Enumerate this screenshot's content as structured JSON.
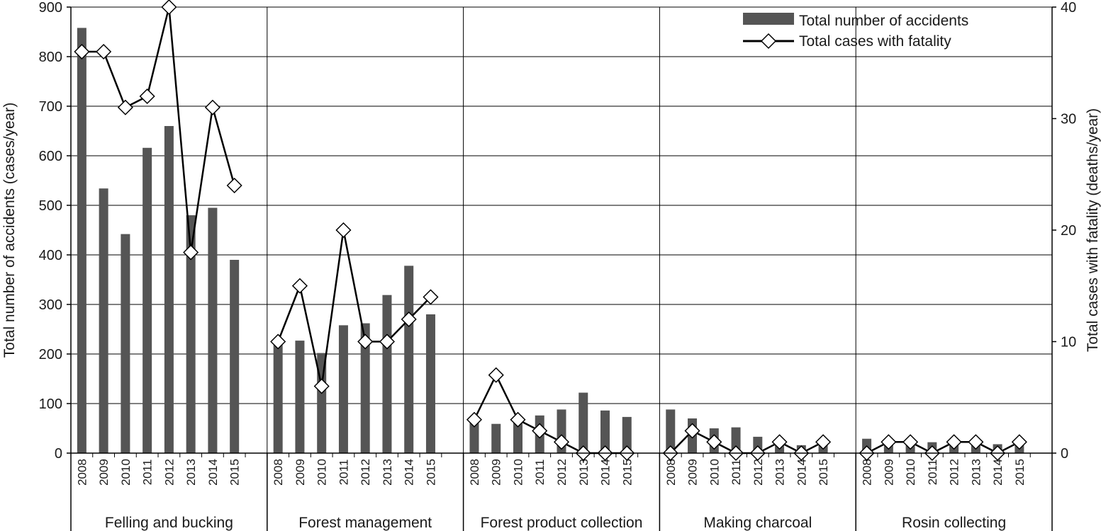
{
  "chart_data": {
    "type": "bar",
    "groups": [
      "Felling and bucking",
      "Forest management",
      "Forest product collection",
      "Making charcoal",
      "Rosin collecting"
    ],
    "years": [
      "2008",
      "2009",
      "2010",
      "2011",
      "2012",
      "2013",
      "2014",
      "2015"
    ],
    "series": [
      {
        "name": "Total number of accidents",
        "type": "bar",
        "axis": "left",
        "color": "#555555",
        "values": [
          [
            858,
            534,
            442,
            616,
            660,
            480,
            495,
            390
          ],
          [
            225,
            227,
            202,
            258,
            262,
            319,
            378,
            280
          ],
          [
            68,
            59,
            70,
            76,
            88,
            122,
            86,
            73
          ],
          [
            88,
            70,
            50,
            52,
            33,
            22,
            16,
            23
          ],
          [
            29,
            27,
            24,
            22,
            20,
            18,
            18,
            16
          ]
        ]
      },
      {
        "name": "Total cases with fatality",
        "type": "line",
        "axis": "right",
        "color": "#000000",
        "marker": "diamond",
        "values": [
          [
            36,
            36,
            31,
            32,
            40,
            18,
            31,
            24
          ],
          [
            10,
            15,
            6,
            20,
            10,
            10,
            12,
            14
          ],
          [
            3,
            7,
            3,
            2,
            1,
            0,
            0,
            0
          ],
          [
            0,
            2,
            1,
            0,
            0,
            1,
            0,
            1
          ],
          [
            0,
            1,
            1,
            0,
            1,
            1,
            0,
            1
          ]
        ]
      }
    ],
    "ylabel": "Total number of accidents (cases/year)",
    "ylabel_right": "Total cases with fatality (deaths/year)",
    "ylim": [
      0,
      900
    ],
    "yticks": [
      0,
      100,
      200,
      300,
      400,
      500,
      600,
      700,
      800,
      900
    ],
    "ylim_right": [
      0,
      40
    ],
    "yticks_right": [
      0,
      10,
      20,
      30,
      40
    ],
    "grid": true,
    "legend_position": "top-right"
  }
}
